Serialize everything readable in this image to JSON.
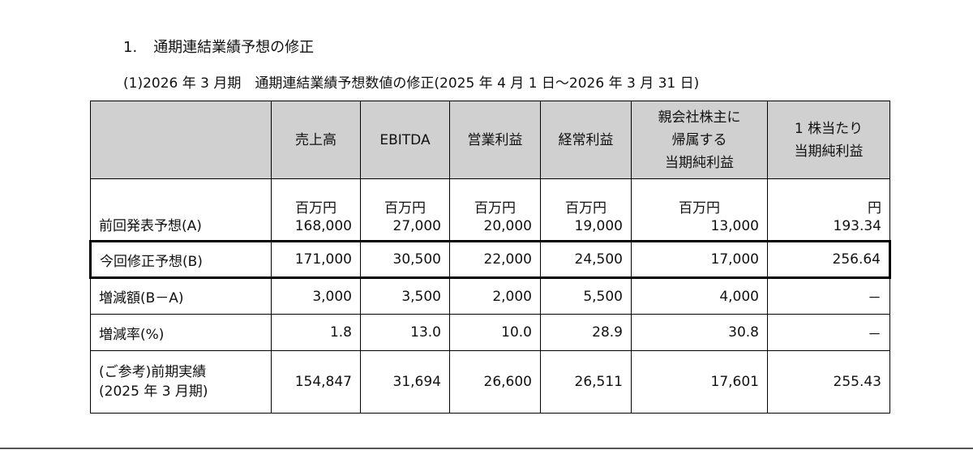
{
  "heading": {
    "number": "1.",
    "title": "通期連結業績予想の修正"
  },
  "subheading": "(1)2026 年 3 月期　通期連結業績予想数値の修正(2025 年 4 月 1 日～2026 年 3 月 31 日)",
  "table": {
    "headers": [
      "",
      "売上高",
      "EBITDA",
      "営業利益",
      "経常利益",
      [
        "親会社株主に",
        "帰属する",
        "当期純利益"
      ],
      [
        "1 株当たり",
        "当期純利益"
      ]
    ],
    "units": [
      "百万円",
      "百万円",
      "百万円",
      "百万円",
      "百万円",
      "円"
    ],
    "rows": [
      {
        "label": "前回発表予想(A)",
        "values": [
          "168,000",
          "27,000",
          "20,000",
          "19,000",
          "13,000",
          "193.34"
        ]
      },
      {
        "label": "今回修正予想(B)",
        "values": [
          "171,000",
          "30,500",
          "22,000",
          "24,500",
          "17,000",
          "256.64"
        ]
      },
      {
        "label": "増減額(B－A)",
        "values": [
          "3,000",
          "3,500",
          "2,000",
          "5,500",
          "4,000",
          "－"
        ]
      },
      {
        "label": "増減率(%)",
        "values": [
          "1.8",
          "13.0",
          "10.0",
          "28.9",
          "30.8",
          "－"
        ]
      },
      {
        "label": [
          "(ご参考)前期実績",
          "(2025 年 3 月期)"
        ],
        "values": [
          "154,847",
          "31,694",
          "26,600",
          "26,511",
          "17,601",
          "255.43"
        ]
      }
    ]
  }
}
